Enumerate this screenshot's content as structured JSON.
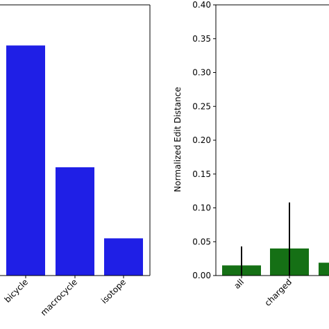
{
  "chart_data": [
    {
      "type": "bar",
      "categories": [
        "bicycle",
        "macrocycle",
        "isotope"
      ],
      "values": [
        0.34,
        0.16,
        0.055
      ],
      "color": "#1f1fe6",
      "ylim": [
        0,
        0.4
      ],
      "xlabel": "",
      "ylabel": "",
      "grid": false
    },
    {
      "type": "bar",
      "categories": [
        "all",
        "charged",
        ""
      ],
      "values": [
        0.015,
        0.04,
        0.019
      ],
      "error_low": [
        0.0,
        0.0,
        null
      ],
      "error_high": [
        0.043,
        0.108,
        null
      ],
      "color": "#157015",
      "ylim": [
        0,
        0.4
      ],
      "yticks": [
        "0.00",
        "0.05",
        "0.10",
        "0.15",
        "0.20",
        "0.25",
        "0.30",
        "0.35",
        "0.40"
      ],
      "xlabel": "",
      "ylabel": "Normalized Edit Distance",
      "grid": false
    }
  ]
}
